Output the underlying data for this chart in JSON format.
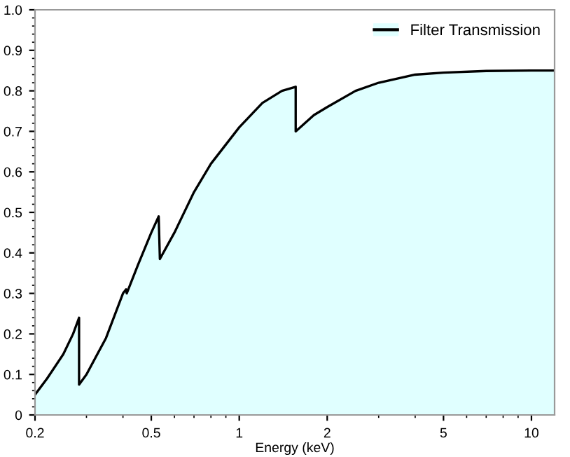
{
  "chart_data": {
    "type": "area",
    "xlabel": "Energy (keV)",
    "log": "x",
    "legend": "top right",
    "grid": false,
    "xlim": [
      0.2,
      12
    ],
    "xticks": [
      0.2,
      0.5,
      1,
      2,
      5,
      10
    ],
    "ylim": [
      0,
      1
    ],
    "yticks": [
      0,
      0.1,
      0.2,
      0.3,
      0.4,
      0.5,
      0.6,
      0.7,
      0.8,
      0.9,
      {
        "value": 1,
        "label": "1.0"
      }
    ],
    "series": [
      {
        "name": "Filter Transmission",
        "color": "#e0ffff",
        "x": [
          0.2,
          0.22,
          0.25,
          0.27,
          0.283,
          0.283,
          0.3,
          0.35,
          0.4,
          0.41,
          0.412,
          0.45,
          0.5,
          0.53,
          0.535,
          0.6,
          0.7,
          0.8,
          1.0,
          1.2,
          1.4,
          1.56,
          1.56,
          1.8,
          2,
          2.5,
          3,
          4,
          5,
          7,
          10,
          12
        ],
        "values": [
          0.05,
          0.09,
          0.15,
          0.2,
          0.24,
          0.075,
          0.1,
          0.19,
          0.3,
          0.31,
          0.3,
          0.37,
          0.45,
          0.49,
          0.385,
          0.45,
          0.55,
          0.62,
          0.71,
          0.77,
          0.8,
          0.81,
          0.7,
          0.74,
          0.76,
          0.8,
          0.82,
          0.84,
          0.845,
          0.849,
          0.85,
          0.85
        ]
      }
    ]
  }
}
